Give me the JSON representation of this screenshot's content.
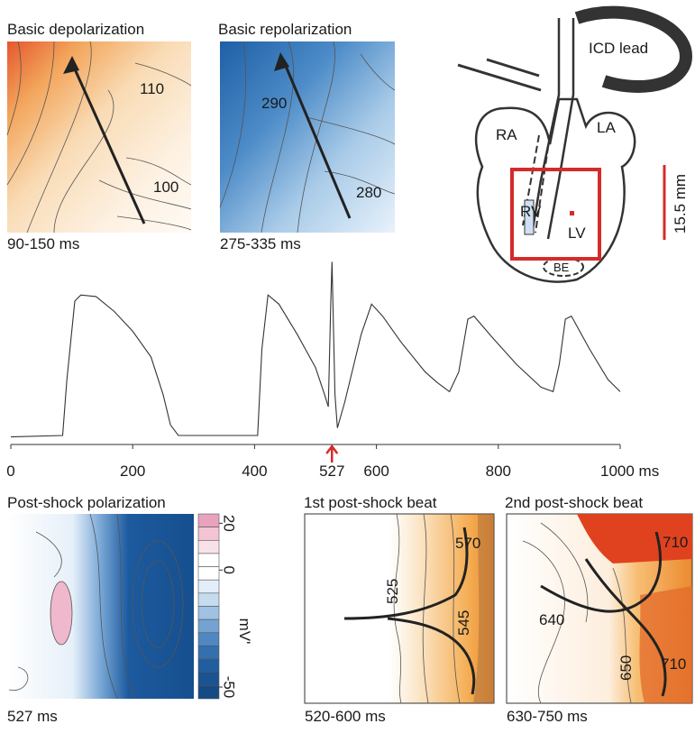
{
  "panels": {
    "depolarization": {
      "title": "Basic depolarization",
      "contours": [
        "110",
        "100"
      ],
      "time": "90-150 ms"
    },
    "repolarization": {
      "title": "Basic repolarization",
      "contours": [
        "290",
        "280"
      ],
      "time": "275-335 ms"
    },
    "post_shock": {
      "title": "Post-shock polarization",
      "time": "527 ms",
      "colorbar": {
        "lim": [
          -55,
          24
        ],
        "ticks": [
          20,
          0,
          -50
        ],
        "label": "mV'"
      }
    },
    "first_beat": {
      "title": "1st post-shock beat",
      "contours": [
        "570",
        "525",
        "545"
      ],
      "time": "520-600 ms"
    },
    "second_beat": {
      "title": "2nd post-shock beat",
      "contours": [
        "710",
        "640",
        "650",
        "710"
      ],
      "time": "630-750 ms"
    }
  },
  "diagram": {
    "labels": [
      "ICD lead",
      "RA",
      "LA",
      "RV",
      "LV",
      "BE"
    ],
    "scale": "15.5 mm"
  },
  "chart_data": {
    "type": "line",
    "color": "#333333",
    "x": [
      0,
      85,
      92,
      105,
      115,
      140,
      170,
      200,
      230,
      250,
      262,
      275,
      380,
      405,
      412,
      422,
      440,
      470,
      500,
      515,
      521,
      525,
      527,
      532,
      536,
      548,
      575,
      592,
      610,
      640,
      680,
      700,
      720,
      735,
      750,
      760,
      790,
      830,
      870,
      890,
      900,
      910,
      920,
      950,
      980,
      1000
    ],
    "values": [
      2,
      3,
      40,
      92,
      96,
      95,
      85,
      72,
      55,
      30,
      10,
      3,
      3,
      3,
      60,
      96,
      90,
      70,
      48,
      30,
      22,
      90,
      118,
      30,
      8,
      25,
      70,
      90,
      82,
      65,
      45,
      38,
      32,
      45,
      80,
      82,
      68,
      50,
      35,
      32,
      50,
      80,
      82,
      60,
      40,
      32
    ],
    "xlim": [
      0,
      1000
    ],
    "ylim": [
      0,
      120
    ],
    "xticks": [
      0,
      200,
      400,
      527,
      600,
      800,
      {
        "value": 1000,
        "label": "1000 ms"
      }
    ],
    "shock": {
      "x": 527,
      "color": "#d42b2b"
    }
  }
}
